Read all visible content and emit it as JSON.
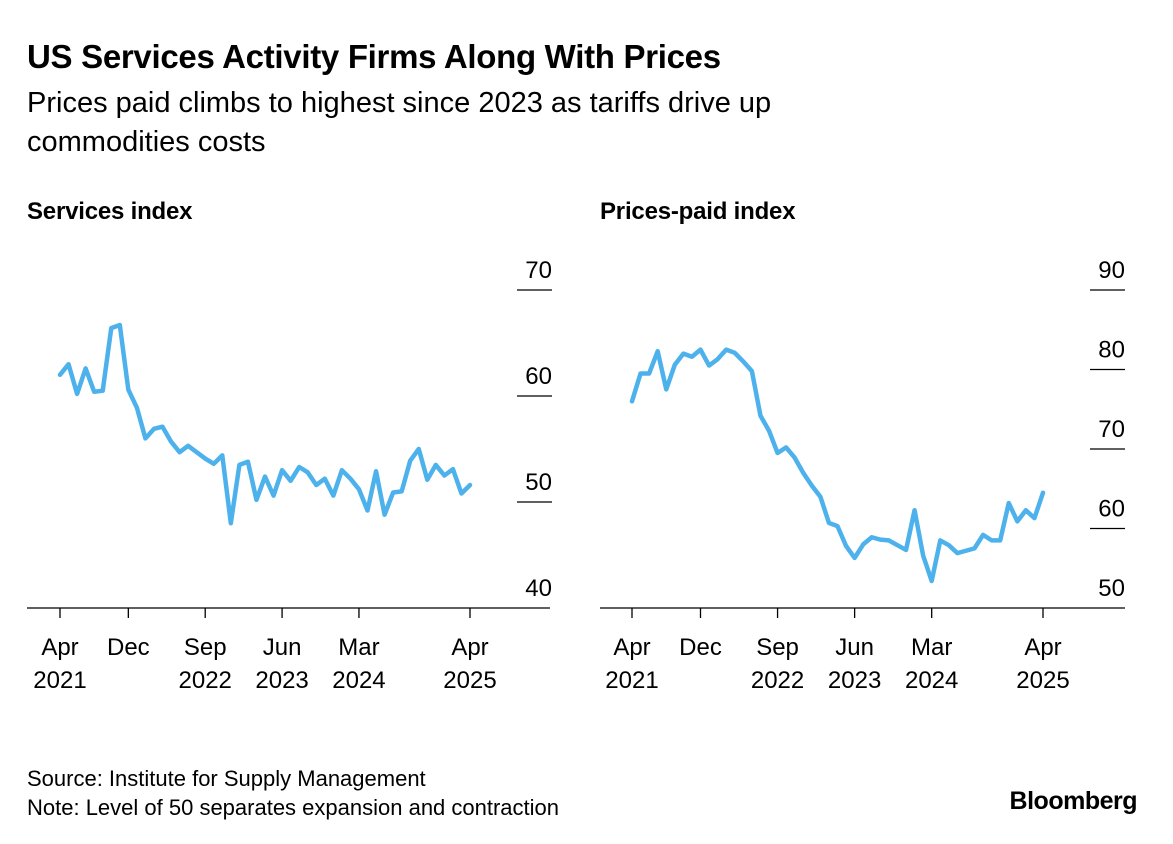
{
  "title": "US Services Activity Firms Along With Prices",
  "subtitle": "Prices paid climbs to highest since 2023 as tariffs drive up commodities costs",
  "footer": {
    "source": "Source: Institute for Supply Management",
    "note": "Note: Level of 50 separates expansion and contraction"
  },
  "logo": "Bloomberg",
  "colors": {
    "line": "#4DB2EC",
    "axis": "#000000"
  },
  "chart_data": [
    {
      "type": "line",
      "title": "Services index",
      "ylim": [
        40,
        70
      ],
      "yticks": [
        40,
        50,
        60,
        70
      ],
      "grid": "tick-marks-right",
      "xlim": [
        0,
        48
      ],
      "xticks": [
        {
          "pos": 0,
          "label": [
            "Apr",
            "2021"
          ]
        },
        {
          "pos": 8,
          "label": [
            "Dec",
            ""
          ]
        },
        {
          "pos": 17,
          "label": [
            "Sep",
            "2022"
          ]
        },
        {
          "pos": 26,
          "label": [
            "Jun",
            "2023"
          ]
        },
        {
          "pos": 35,
          "label": [
            "Mar",
            "2024"
          ]
        },
        {
          "pos": 48,
          "label": [
            "Apr",
            "2025"
          ]
        }
      ],
      "values": [
        62.0,
        63.0,
        60.2,
        62.6,
        60.4,
        60.5,
        66.4,
        66.7,
        60.6,
        58.9,
        56.0,
        56.9,
        57.1,
        55.7,
        54.7,
        55.3,
        54.7,
        54.1,
        53.6,
        54.4,
        48.0,
        53.5,
        53.8,
        50.2,
        52.4,
        50.6,
        53.0,
        52.0,
        53.3,
        52.8,
        51.6,
        52.2,
        50.6,
        53.0,
        52.2,
        51.2,
        49.2,
        52.9,
        48.8,
        50.9,
        51.0,
        53.9,
        55.0,
        52.1,
        53.5,
        52.5,
        53.1,
        50.8,
        51.6
      ]
    },
    {
      "type": "line",
      "title": "Prices-paid index",
      "ylim": [
        50,
        90
      ],
      "yticks": [
        50,
        60,
        70,
        80,
        90
      ],
      "grid": "tick-marks-right",
      "xlim": [
        0,
        48
      ],
      "xticks": [
        {
          "pos": 0,
          "label": [
            "Apr",
            "2021"
          ]
        },
        {
          "pos": 8,
          "label": [
            "Dec",
            ""
          ]
        },
        {
          "pos": 17,
          "label": [
            "Sep",
            "2022"
          ]
        },
        {
          "pos": 26,
          "label": [
            "Jun",
            "2023"
          ]
        },
        {
          "pos": 35,
          "label": [
            "Mar",
            "2024"
          ]
        },
        {
          "pos": 48,
          "label": [
            "Apr",
            "2025"
          ]
        }
      ],
      "values": [
        76.0,
        79.5,
        79.5,
        82.3,
        77.5,
        80.6,
        82.0,
        81.6,
        82.5,
        80.5,
        81.3,
        82.5,
        82.1,
        81.0,
        79.8,
        74.2,
        72.3,
        69.5,
        70.2,
        68.9,
        67.0,
        65.4,
        64.0,
        60.7,
        60.3,
        57.8,
        56.3,
        58.0,
        58.9,
        58.6,
        58.5,
        57.9,
        57.3,
        62.3,
        56.6,
        53.4,
        58.5,
        57.9,
        56.9,
        57.2,
        57.5,
        59.2,
        58.5,
        58.5,
        63.2,
        60.9,
        62.3,
        61.3,
        64.5
      ]
    }
  ]
}
